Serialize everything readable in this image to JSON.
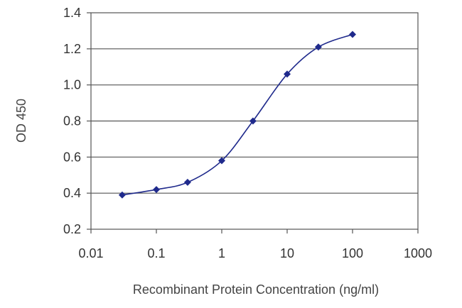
{
  "chart_data": {
    "type": "line",
    "xlabel": "Recombinant Protein Concentration (ng/ml)",
    "ylabel": "OD 450",
    "x_scale": "log",
    "xlim": [
      0.01,
      1000
    ],
    "ylim": [
      0.2,
      1.4
    ],
    "x_ticks": [
      "0.01",
      "0.1",
      "1",
      "10",
      "100",
      "1000"
    ],
    "y_ticks": [
      "0.2",
      "0.4",
      "0.6",
      "0.8",
      "1.0",
      "1.2",
      "1.4"
    ],
    "grid": "horizontal",
    "series": [
      {
        "x": [
          0.03,
          0.1,
          0.3,
          1,
          3,
          10,
          30,
          100
        ],
        "y": [
          0.39,
          0.42,
          0.46,
          0.58,
          0.8,
          1.06,
          1.21,
          1.28
        ],
        "color": "#1f2a8c"
      }
    ]
  }
}
